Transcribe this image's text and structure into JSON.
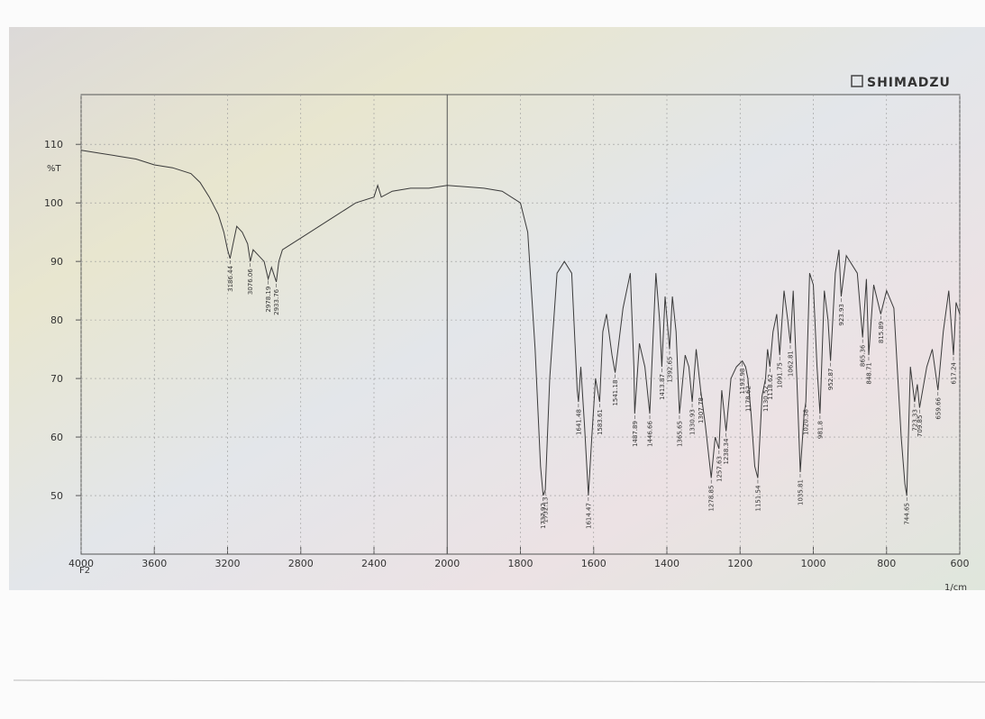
{
  "chart_data": {
    "type": "line",
    "brand": "SHIMADZU",
    "y_label": "%T",
    "x_label": "1/cm",
    "x_note": "F2",
    "xlim": [
      4000,
      600
    ],
    "x_break": 2000,
    "xticks": [
      4000,
      3600,
      3200,
      2800,
      2400,
      2000,
      1800,
      1600,
      1400,
      1200,
      1000,
      800,
      600
    ],
    "ylim": [
      40,
      118.5
    ],
    "yticks": [
      50,
      60,
      70,
      80,
      90,
      100,
      110
    ],
    "grid": true,
    "color": "#3a3a3a",
    "x": [
      4000,
      3900,
      3800,
      3700,
      3600,
      3500,
      3400,
      3350,
      3300,
      3250,
      3220,
      3200,
      3186.44,
      3170,
      3150,
      3120,
      3090,
      3076.06,
      3060,
      3030,
      3000,
      2978.19,
      2960,
      2933.76,
      2920,
      2900,
      2850,
      2800,
      2700,
      2600,
      2500,
      2400,
      2380,
      2360,
      2300,
      2200,
      2100,
      2000,
      1900,
      1850,
      1800,
      1780,
      1760,
      1745,
      1737.92,
      1732.13,
      1720,
      1700,
      1680,
      1660,
      1645,
      1641.48,
      1635,
      1625,
      1614.47,
      1605,
      1595,
      1583.61,
      1575,
      1565,
      1550,
      1541.18,
      1520,
      1500,
      1490,
      1487.89,
      1475,
      1460,
      1446.66,
      1430,
      1420,
      1413.87,
      1405,
      1392.65,
      1385,
      1375,
      1365.65,
      1350,
      1340,
      1330.93,
      1320,
      1307.78,
      1295,
      1278.85,
      1268,
      1257.63,
      1250,
      1238.34,
      1225,
      1210,
      1193.98,
      1185,
      1178.62,
      1170,
      1160,
      1151.54,
      1140,
      1130.52,
      1125,
      1118.62,
      1110,
      1100,
      1091.75,
      1080,
      1070,
      1062.81,
      1055,
      1045,
      1035.81,
      1025,
      1020.38,
      1010,
      1000,
      990,
      981.8,
      970,
      960,
      952.87,
      940,
      930,
      923.93,
      910,
      880,
      865.36,
      855,
      848.71,
      835,
      815.89,
      800,
      780,
      760,
      750,
      744.65,
      735,
      723.33,
      716,
      709.85,
      690,
      675,
      659.66,
      645,
      630,
      617.24,
      610,
      600
    ],
    "values": [
      109,
      108.5,
      108,
      107.5,
      106.5,
      106,
      105,
      103.5,
      101,
      98,
      95,
      92,
      90.5,
      93,
      96,
      95,
      93,
      90,
      92,
      91,
      90,
      87,
      89,
      86.5,
      90,
      92,
      93,
      94,
      96,
      98,
      100,
      101,
      103,
      101,
      102,
      102.5,
      102.5,
      103,
      102.5,
      102,
      100,
      95,
      75,
      55,
      50,
      51,
      70,
      88,
      90,
      88,
      68,
      66,
      72,
      62,
      50,
      60,
      70,
      66,
      78,
      81,
      74,
      71,
      82,
      88,
      72,
      64,
      76,
      72,
      64,
      88,
      80,
      72,
      84,
      75,
      84,
      78,
      64,
      74,
      72,
      66,
      75,
      68,
      62,
      53,
      60,
      58,
      68,
      61,
      70,
      72,
      73,
      72,
      70,
      64,
      55,
      53,
      67,
      70,
      75,
      72,
      78,
      81,
      74,
      85,
      80,
      76,
      85,
      70,
      54,
      64,
      66,
      88,
      86,
      72,
      64,
      85,
      80,
      73,
      88,
      92,
      84,
      91,
      88,
      77,
      87,
      74,
      86,
      81,
      85,
      82,
      60,
      52,
      50,
      72,
      66,
      69,
      65,
      72,
      75,
      68,
      78,
      85,
      74,
      83,
      81
    ],
    "peaks": [
      3186.44,
      3076.06,
      2978.19,
      2933.76,
      1737.92,
      1732.13,
      1641.48,
      1614.47,
      1583.61,
      1541.18,
      1487.89,
      1446.66,
      1413.87,
      1392.65,
      1365.65,
      1330.93,
      1307.78,
      1278.85,
      1257.63,
      1238.34,
      1193.98,
      1178.62,
      1151.54,
      1130.52,
      1118.62,
      1091.75,
      1062.81,
      1035.81,
      1020.38,
      981.8,
      952.87,
      923.93,
      865.36,
      848.71,
      815.89,
      744.65,
      723.33,
      709.85,
      659.66,
      617.24
    ]
  }
}
